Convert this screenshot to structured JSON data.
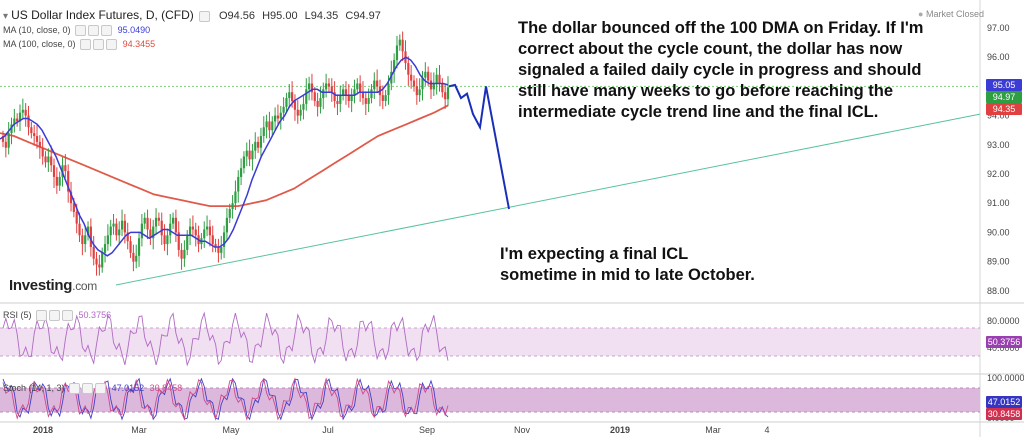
{
  "header": {
    "title": "US Dollar Index Futures, D, (CFD)",
    "open_label": "O",
    "open": "94.56",
    "high_label": "H",
    "high": "95.00",
    "low_label": "L",
    "low": "94.35",
    "close_label": "C",
    "close": "94.97",
    "market_status": "Market Closed",
    "ma10_label": "MA (10, close, 0)",
    "ma10_value": "95.0490",
    "ma100_label": "MA (100, close, 0)",
    "ma100_value": "94.3455",
    "rsi_label": "RSI (5)",
    "rsi_value": "50.3756",
    "stoch_label": "Stoch (14, 1, 3)",
    "stoch_k": "47.0152",
    "stoch_d": "30.8458"
  },
  "annotations": {
    "main_note": "The dollar bounced off the 100 DMA on Friday. If I'm correct about the cycle count, the dollar has now signaled a failed daily cycle in progress and should still have many weeks to go before reaching the intermediate cycle trend line and the final ICL.",
    "main_note_lines": [
      "The dollar bounced off the 100 DMA on Friday. If I'm",
      "correct about the cycle count, the dollar has now",
      "signaled a failed daily cycle in progress and should",
      "still have many weeks to go before reaching the",
      "intermediate cycle trend line and the final ICL."
    ],
    "forecast_note_lines": [
      "I'm expecting a final ICL",
      "sometime in mid to late October."
    ]
  },
  "logo": {
    "text": "Investing",
    "suffix": ".com"
  },
  "badges": {
    "ma10": "95.05",
    "close": "94.97",
    "ma100": "94.35",
    "rsi": "50.3756",
    "stoch_k": "47.0152",
    "stoch_d": "30.8458"
  },
  "colors": {
    "up": "#2e9e43",
    "down": "#e04040",
    "ma10": "#3b3bd6",
    "ma100": "#e05a4a",
    "trend": "#58c39a",
    "forecast": "#1a2fb8",
    "rsi": "#b06bc4",
    "stoch_k": "#4040c8",
    "stoch_d": "#d04a8a",
    "band_rsi": "#f1dff2",
    "band_stoch": "#dcb8dd"
  },
  "chart_data": {
    "type": "candlestick",
    "title": "US Dollar Index Futures, D, (CFD)",
    "price_axis": {
      "ticks": [
        "97.00",
        "96.00",
        "95.00",
        "94.00",
        "93.00",
        "92.00",
        "91.00",
        "90.00",
        "89.00",
        "88.00"
      ],
      "ylim": [
        87.6,
        97.5
      ]
    },
    "rsi_axis": {
      "ticks": [
        "80.0000",
        "40.0000"
      ],
      "band": [
        30,
        70
      ]
    },
    "stoch_axis": {
      "ticks": [
        "100.0000",
        "0.0000"
      ],
      "band": [
        20,
        80
      ]
    },
    "x_tick_labels": [
      "2018",
      "Mar",
      "May",
      "Jul",
      "Sep",
      "Nov",
      "2019",
      "Mar",
      "4"
    ],
    "close": [
      93.1,
      92.9,
      93.4,
      93.7,
      93.9,
      93.8,
      94.1,
      94.2,
      94.0,
      93.6,
      93.4,
      93.3,
      93.1,
      92.9,
      92.6,
      92.4,
      92.6,
      92.3,
      91.9,
      91.6,
      91.9,
      92.3,
      92.1,
      91.4,
      91.0,
      90.7,
      90.3,
      89.9,
      89.6,
      89.9,
      90.2,
      89.5,
      89.1,
      88.9,
      88.8,
      89.3,
      89.6,
      89.9,
      90.2,
      90.3,
      89.9,
      90.1,
      90.4,
      90.0,
      89.7,
      89.3,
      89.0,
      89.2,
      89.8,
      90.3,
      90.5,
      90.1,
      89.8,
      90.2,
      90.5,
      90.4,
      89.9,
      89.6,
      89.9,
      90.3,
      90.5,
      90.0,
      89.4,
      89.1,
      89.4,
      89.9,
      90.2,
      90.1,
      89.9,
      89.6,
      89.8,
      90.1,
      90.2,
      89.9,
      89.6,
      89.5,
      89.3,
      89.5,
      90.0,
      90.5,
      90.8,
      91.0,
      91.4,
      91.9,
      92.2,
      92.6,
      92.8,
      92.5,
      92.8,
      93.1,
      92.9,
      93.3,
      93.6,
      93.8,
      93.5,
      93.8,
      94.0,
      93.9,
      94.1,
      94.3,
      94.6,
      94.8,
      94.5,
      94.2,
      94.0,
      94.2,
      94.4,
      94.9,
      95.1,
      94.8,
      94.5,
      94.3,
      94.6,
      94.9,
      95.1,
      95.0,
      94.8,
      94.5,
      94.4,
      94.7,
      94.9,
      94.7,
      94.5,
      94.7,
      94.9,
      95.1,
      94.8,
      94.6,
      94.4,
      94.6,
      94.9,
      95.2,
      95.0,
      94.7,
      94.5,
      94.7,
      95.1,
      95.5,
      95.9,
      96.4,
      96.6,
      96.2,
      95.8,
      95.4,
      95.2,
      95.0,
      94.7,
      94.9,
      95.3,
      95.5,
      95.2,
      94.9,
      95.1,
      95.4,
      95.1,
      94.8,
      94.56,
      94.97
    ],
    "ma10": [
      93.2,
      93.3,
      93.5,
      93.7,
      93.8,
      93.9,
      93.9,
      93.8,
      93.7,
      93.5,
      93.2,
      92.9,
      92.6,
      92.2,
      91.8,
      91.4,
      91.0,
      90.6,
      90.3,
      89.9,
      89.6,
      89.4,
      89.3,
      89.2,
      89.3,
      89.5,
      89.7,
      89.9,
      90.0,
      90.0,
      90.0,
      89.9,
      89.8,
      89.9,
      90.0,
      90.1,
      90.1,
      90.0,
      89.9,
      89.9,
      89.9,
      89.9,
      89.8,
      89.7,
      89.7,
      89.6,
      89.5,
      89.5,
      89.6,
      89.8,
      90.1,
      90.5,
      90.9,
      91.3,
      91.8,
      92.2,
      92.6,
      92.9,
      93.2,
      93.5,
      93.8,
      94.0,
      94.3,
      94.5,
      94.6,
      94.7,
      94.8,
      94.9,
      94.9,
      94.8,
      94.8,
      94.8,
      94.7,
      94.7,
      94.7,
      94.7,
      94.7,
      94.8,
      94.8,
      94.8,
      94.8,
      94.8,
      94.9,
      95.1,
      95.4,
      95.7,
      95.9,
      96.0,
      95.9,
      95.7,
      95.4,
      95.2,
      95.1,
      95.1,
      95.1,
      95.1,
      95.05
    ],
    "ma100": [
      93.4,
      93.3,
      93.1,
      92.9,
      92.7,
      92.5,
      92.3,
      92.1,
      91.9,
      91.7,
      91.5,
      91.3,
      91.2,
      91.1,
      91.0,
      90.9,
      90.9,
      90.9,
      91.0,
      91.1,
      91.3,
      91.5,
      91.8,
      92.1,
      92.4,
      92.7,
      93.0,
      93.3,
      93.5,
      93.7,
      93.9,
      94.1,
      94.35
    ],
    "forecast": [
      [
        95.0,
        "Sep 14"
      ],
      [
        95.05,
        "Sep 17"
      ],
      [
        94.6,
        "Sep 19"
      ],
      [
        94.75,
        "Sep 21"
      ],
      [
        94.05,
        "Sep 24"
      ],
      [
        93.6,
        "Sep 26"
      ],
      [
        95.0,
        "Sep 28"
      ],
      [
        90.8,
        "Oct 15"
      ]
    ],
    "trend_line": [
      [
        88.2,
        "Feb 2018"
      ],
      [
        94.05,
        "Dec 2018"
      ]
    ],
    "horizontal_level": 95.0
  }
}
